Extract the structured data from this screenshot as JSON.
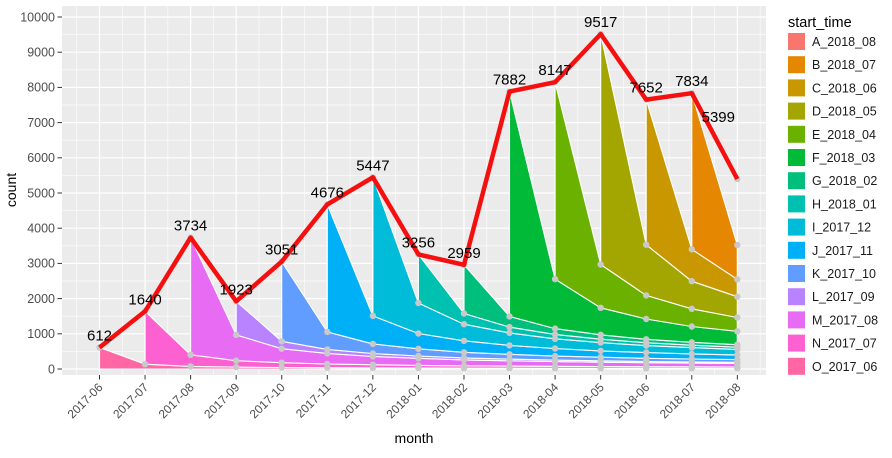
{
  "chart_data": {
    "type": "area",
    "subtype": "stacked-cohort-area-with-total-line",
    "xlabel": "month",
    "ylabel": "count",
    "legend_title": "start_time",
    "legend_position": "right",
    "grid": true,
    "panel_bg": "#EBEBEB",
    "grid_color": "#FFFFFF",
    "point_color": "#C9C9C9",
    "total_line_color": "#F50F0F",
    "axis_text_color": "#4D4D4D",
    "label_text_color": "#000000",
    "x_categories": [
      "2017-06",
      "2017-07",
      "2017-08",
      "2017-09",
      "2017-10",
      "2017-11",
      "2017-12",
      "2018-01",
      "2018-02",
      "2018-03",
      "2018-04",
      "2018-05",
      "2018-06",
      "2018-07",
      "2018-08"
    ],
    "y_ticks": [
      0,
      1000,
      2000,
      3000,
      4000,
      5000,
      6000,
      7000,
      8000,
      9000,
      10000
    ],
    "ylim": [
      0,
      10000
    ],
    "totals": [
      612,
      1640,
      3734,
      1923,
      3051,
      4676,
      5447,
      3256,
      2959,
      7882,
      8147,
      9517,
      7652,
      7834,
      5399
    ],
    "total_labels": [
      "612",
      "1640",
      "3734",
      "1923",
      "3051",
      "4676",
      "5447",
      "3256",
      "2959",
      "7882",
      "8147",
      "9517",
      "7652",
      "7834",
      "5399"
    ],
    "series": [
      {
        "name": "A_2018_08",
        "color": "#F8766D",
        "values": [
          0,
          0,
          0,
          0,
          0,
          0,
          0,
          0,
          0,
          0,
          0,
          0,
          0,
          0,
          1877
        ]
      },
      {
        "name": "B_2018_07",
        "color": "#E58700",
        "values": [
          0,
          0,
          0,
          0,
          0,
          0,
          0,
          0,
          0,
          0,
          0,
          0,
          0,
          4433,
          975
        ]
      },
      {
        "name": "C_2018_06",
        "color": "#C99800",
        "values": [
          0,
          0,
          0,
          0,
          0,
          0,
          0,
          0,
          0,
          0,
          0,
          0,
          4120,
          906,
          494
        ]
      },
      {
        "name": "D_2018_05",
        "color": "#A3A500",
        "values": [
          0,
          0,
          0,
          0,
          0,
          0,
          0,
          0,
          0,
          0,
          0,
          6549,
          1441,
          786,
          589
        ]
      },
      {
        "name": "E_2018_04",
        "color": "#6BB100",
        "values": [
          0,
          0,
          0,
          0,
          0,
          0,
          0,
          0,
          0,
          0,
          5593,
          1230,
          671,
          503,
          392
        ]
      },
      {
        "name": "F_2018_03",
        "color": "#00BA38",
        "values": [
          0,
          0,
          0,
          0,
          0,
          0,
          0,
          0,
          0,
          6387,
          1405,
          766,
          575,
          447,
          383
        ]
      },
      {
        "name": "G_2018_02",
        "color": "#00BF7D",
        "values": [
          0,
          0,
          0,
          0,
          0,
          0,
          0,
          0,
          1382,
          304,
          166,
          124,
          97,
          83,
          69
        ]
      },
      {
        "name": "H_2018_01",
        "color": "#00C0AF",
        "values": [
          0,
          0,
          0,
          0,
          0,
          0,
          0,
          1381,
          304,
          166,
          124,
          97,
          83,
          69,
          62
        ]
      },
      {
        "name": "I_2017_12",
        "color": "#00BCD8",
        "values": [
          0,
          0,
          0,
          0,
          0,
          0,
          3938,
          866,
          473,
          354,
          276,
          236,
          197,
          177,
          158
        ]
      },
      {
        "name": "J_2017_11",
        "color": "#00B0F6",
        "values": [
          0,
          0,
          0,
          0,
          0,
          3622,
          797,
          435,
          326,
          254,
          217,
          181,
          163,
          145,
          134
        ]
      },
      {
        "name": "K_2017_10",
        "color": "#619CFF",
        "values": [
          0,
          0,
          0,
          0,
          2263,
          498,
          272,
          204,
          158,
          136,
          113,
          102,
          91,
          84,
          77
        ]
      },
      {
        "name": "L_2017_09",
        "color": "#B983FF",
        "values": [
          0,
          0,
          0,
          954,
          210,
          114,
          86,
          67,
          57,
          48,
          43,
          38,
          35,
          32,
          31
        ]
      },
      {
        "name": "M_2017_08",
        "color": "#E76BF3",
        "values": [
          0,
          0,
          3330,
          733,
          400,
          300,
          233,
          200,
          167,
          150,
          133,
          123,
          113,
          107,
          100
        ]
      },
      {
        "name": "N_2017_07",
        "color": "#FD61D1",
        "values": [
          0,
          1505,
          331,
          181,
          135,
          105,
          90,
          75,
          68,
          60,
          56,
          51,
          48,
          45,
          42
        ]
      },
      {
        "name": "O_2017_06",
        "color": "#FF67A4",
        "values": [
          612,
          135,
          73,
          55,
          43,
          37,
          31,
          28,
          24,
          23,
          21,
          20,
          18,
          17,
          16
        ]
      }
    ]
  }
}
